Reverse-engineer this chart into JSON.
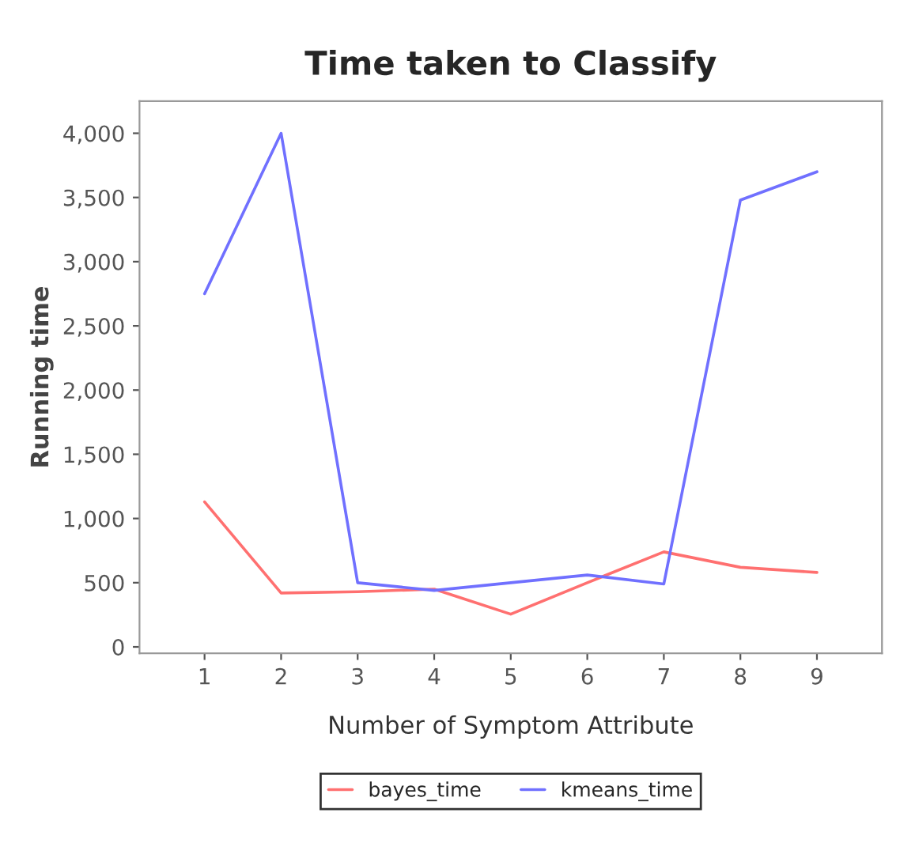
{
  "chart_data": {
    "type": "line",
    "title": "Time taken to Classify",
    "xlabel": "Number of Symptom Attribute",
    "ylabel": "Running time",
    "categories": [
      "1",
      "2",
      "3",
      "4",
      "5",
      "6",
      "7",
      "8",
      "9"
    ],
    "series": [
      {
        "name": "bayes_time",
        "color": "#ff7070",
        "values": [
          1130,
          420,
          430,
          450,
          255,
          500,
          740,
          620,
          580
        ]
      },
      {
        "name": "kmeans_time",
        "color": "#7070ff",
        "values": [
          2750,
          4000,
          500,
          440,
          500,
          560,
          490,
          3480,
          3700
        ]
      }
    ],
    "ylim": [
      -50,
      4250
    ],
    "yticks": [
      {
        "value": 0,
        "label": "0"
      },
      {
        "value": 500,
        "label": "500"
      },
      {
        "value": 1000,
        "label": "1,000"
      },
      {
        "value": 1500,
        "label": "1,500"
      },
      {
        "value": 2000,
        "label": "2,000"
      },
      {
        "value": 2500,
        "label": "2,500"
      },
      {
        "value": 3000,
        "label": "3,000"
      },
      {
        "value": 3500,
        "label": "3,500"
      },
      {
        "value": 4000,
        "label": "4,000"
      }
    ],
    "grid": false,
    "legend": "bottom",
    "marker": "none",
    "line_style": "solid"
  }
}
